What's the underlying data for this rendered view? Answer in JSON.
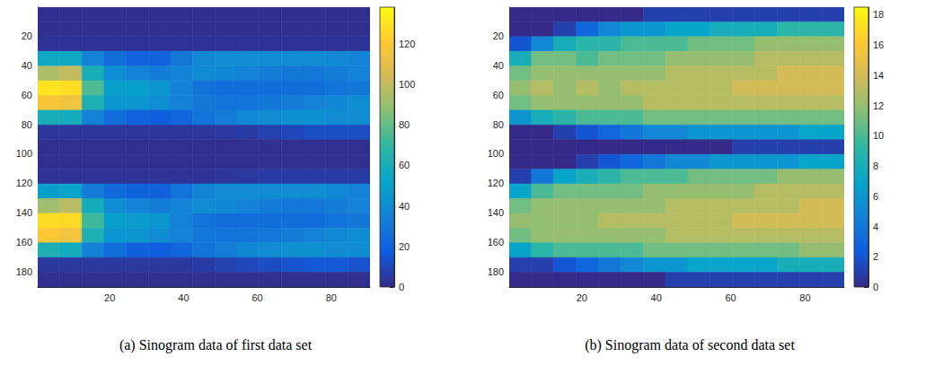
{
  "chart_data": [
    {
      "type": "heatmap",
      "title": "(a) Sinogram data of first data set",
      "xlim": [
        0.5,
        90.5
      ],
      "xticks": [
        20,
        40,
        60,
        80
      ],
      "ylim": [
        0.5,
        190.5
      ],
      "yticks": [
        20,
        40,
        60,
        80,
        100,
        120,
        140,
        160,
        180
      ],
      "x_bins": [
        0.5,
        6.5,
        12.5,
        18.5,
        24.5,
        30.5,
        36.5,
        42.5,
        48.5,
        54.5,
        60.5,
        66.5,
        72.5,
        78.5,
        84.5,
        90.5
      ],
      "y_bins": [
        0.5,
        10.5,
        20.5,
        30.5,
        40.5,
        50.5,
        60.5,
        70.5,
        80.5,
        90.5,
        100.5,
        110.5,
        120.5,
        130.5,
        140.5,
        150.5,
        160.5,
        170.5,
        180.5,
        190.5
      ],
      "values": [
        [
          2,
          2,
          2,
          2,
          2,
          2,
          2,
          2,
          2,
          2,
          2,
          2,
          2,
          2,
          2
        ],
        [
          2,
          2,
          2,
          2,
          2,
          2,
          2,
          2,
          2,
          2,
          2,
          2,
          2,
          2,
          2
        ],
        [
          3,
          3,
          3,
          3,
          3,
          3,
          3,
          3,
          3,
          3,
          3,
          3,
          3,
          3,
          3
        ],
        [
          55,
          55,
          35,
          25,
          20,
          20,
          30,
          38,
          40,
          40,
          40,
          40,
          40,
          38,
          35
        ],
        [
          95,
          100,
          60,
          40,
          35,
          32,
          35,
          40,
          38,
          35,
          32,
          30,
          30,
          32,
          35
        ],
        [
          130,
          128,
          75,
          50,
          50,
          45,
          35,
          28,
          25,
          25,
          25,
          25,
          25,
          28,
          30
        ],
        [
          118,
          115,
          62,
          45,
          45,
          40,
          35,
          30,
          28,
          28,
          30,
          32,
          35,
          38,
          40
        ],
        [
          60,
          58,
          35,
          25,
          20,
          18,
          22,
          28,
          32,
          38,
          40,
          42,
          42,
          40,
          40
        ],
        [
          4,
          4,
          4,
          4,
          4,
          4,
          4,
          4,
          5,
          6,
          8,
          10,
          12,
          12,
          12
        ],
        [
          2,
          2,
          2,
          2,
          2,
          2,
          2,
          2,
          2,
          2,
          2,
          2,
          2,
          2,
          2
        ],
        [
          2,
          2,
          2,
          2,
          2,
          2,
          2,
          2,
          2,
          2,
          2,
          2,
          2,
          2,
          2
        ],
        [
          3,
          3,
          3,
          3,
          3,
          3,
          3,
          3,
          4,
          5,
          6,
          6,
          6,
          6,
          6
        ],
        [
          50,
          52,
          32,
          24,
          20,
          20,
          28,
          36,
          40,
          40,
          40,
          40,
          40,
          38,
          35
        ],
        [
          92,
          98,
          58,
          40,
          35,
          32,
          35,
          40,
          38,
          35,
          32,
          30,
          30,
          32,
          35
        ],
        [
          128,
          126,
          72,
          50,
          48,
          45,
          35,
          28,
          25,
          25,
          25,
          25,
          25,
          28,
          30
        ],
        [
          120,
          116,
          62,
          45,
          45,
          40,
          35,
          30,
          28,
          28,
          30,
          32,
          35,
          38,
          40
        ],
        [
          62,
          58,
          35,
          25,
          20,
          18,
          22,
          28,
          32,
          38,
          40,
          42,
          42,
          40,
          40
        ],
        [
          5,
          5,
          5,
          5,
          5,
          5,
          5,
          6,
          8,
          10,
          12,
          14,
          16,
          16,
          14
        ],
        [
          2,
          2,
          2,
          2,
          2,
          2,
          2,
          2,
          2,
          2,
          2,
          2,
          2,
          2,
          2
        ]
      ],
      "colorbar": {
        "range": [
          0,
          138
        ],
        "ticks": [
          0,
          20,
          40,
          60,
          80,
          100,
          120
        ]
      }
    },
    {
      "type": "heatmap",
      "title": "(b) Sinogram data of second data set",
      "xlim": [
        0.5,
        90.5
      ],
      "xticks": [
        20,
        40,
        60,
        80
      ],
      "ylim": [
        0.5,
        190.5
      ],
      "yticks": [
        20,
        40,
        60,
        80,
        100,
        120,
        140,
        160,
        180
      ],
      "x_bins": [
        0.5,
        6.5,
        12.5,
        18.5,
        24.5,
        30.5,
        36.5,
        42.5,
        48.5,
        54.5,
        60.5,
        66.5,
        72.5,
        78.5,
        84.5,
        90.5
      ],
      "y_bins": [
        0.5,
        10.5,
        20.5,
        30.5,
        40.5,
        50.5,
        60.5,
        70.5,
        80.5,
        90.5,
        100.5,
        110.5,
        120.5,
        130.5,
        140.5,
        150.5,
        160.5,
        170.5,
        180.5,
        190.5
      ],
      "values": [
        [
          0,
          0,
          0,
          0,
          0,
          0,
          1,
          1,
          1,
          1,
          1,
          1,
          1,
          1,
          1
        ],
        [
          0,
          0,
          1,
          3,
          5,
          6,
          6,
          7,
          7,
          8,
          8,
          8,
          9,
          9,
          9
        ],
        [
          2,
          5,
          8,
          9,
          9,
          10,
          10,
          10,
          11,
          11,
          11,
          12,
          12,
          12,
          12
        ],
        [
          8,
          11,
          11,
          10,
          11,
          11,
          11,
          12,
          12,
          12,
          12,
          13,
          13,
          13,
          13
        ],
        [
          11,
          12,
          12,
          12,
          12,
          12,
          12,
          13,
          13,
          13,
          13,
          13,
          14,
          14,
          14
        ],
        [
          12,
          13,
          12,
          13,
          12,
          13,
          13,
          13,
          13,
          13,
          14,
          14,
          14,
          14,
          14
        ],
        [
          11,
          12,
          12,
          12,
          12,
          12,
          13,
          13,
          13,
          13,
          13,
          13,
          13,
          13,
          13
        ],
        [
          6,
          8,
          9,
          10,
          10,
          10,
          11,
          11,
          11,
          11,
          11,
          11,
          11,
          11,
          11
        ],
        [
          0,
          0,
          1,
          2,
          3,
          4,
          5,
          5,
          6,
          6,
          6,
          6,
          6,
          7,
          7
        ],
        [
          0,
          0,
          0,
          0,
          0,
          0,
          0,
          0,
          0,
          0,
          1,
          1,
          1,
          1,
          1
        ],
        [
          0,
          0,
          0,
          1,
          2,
          3,
          4,
          5,
          5,
          6,
          6,
          6,
          6,
          7,
          7
        ],
        [
          1,
          4,
          7,
          8,
          9,
          10,
          10,
          10,
          11,
          11,
          11,
          11,
          12,
          12,
          12
        ],
        [
          7,
          10,
          11,
          11,
          11,
          11,
          12,
          12,
          12,
          12,
          12,
          13,
          13,
          13,
          13
        ],
        [
          11,
          12,
          12,
          12,
          12,
          12,
          12,
          13,
          13,
          13,
          13,
          13,
          13,
          14,
          14
        ],
        [
          12,
          12,
          12,
          12,
          13,
          13,
          13,
          13,
          13,
          13,
          14,
          14,
          14,
          14,
          14
        ],
        [
          11,
          12,
          12,
          12,
          12,
          12,
          12,
          13,
          13,
          13,
          13,
          13,
          13,
          13,
          13
        ],
        [
          7,
          9,
          10,
          10,
          10,
          10,
          11,
          11,
          11,
          11,
          11,
          11,
          11,
          12,
          12
        ],
        [
          1,
          1,
          2,
          3,
          4,
          5,
          6,
          6,
          7,
          7,
          7,
          7,
          8,
          8,
          8
        ],
        [
          0,
          0,
          0,
          0,
          0,
          0,
          0,
          1,
          1,
          1,
          1,
          1,
          1,
          1,
          1
        ]
      ],
      "colorbar": {
        "range": [
          0,
          18.5
        ],
        "ticks": [
          0,
          2,
          4,
          6,
          8,
          10,
          12,
          14,
          16,
          18
        ]
      }
    }
  ]
}
